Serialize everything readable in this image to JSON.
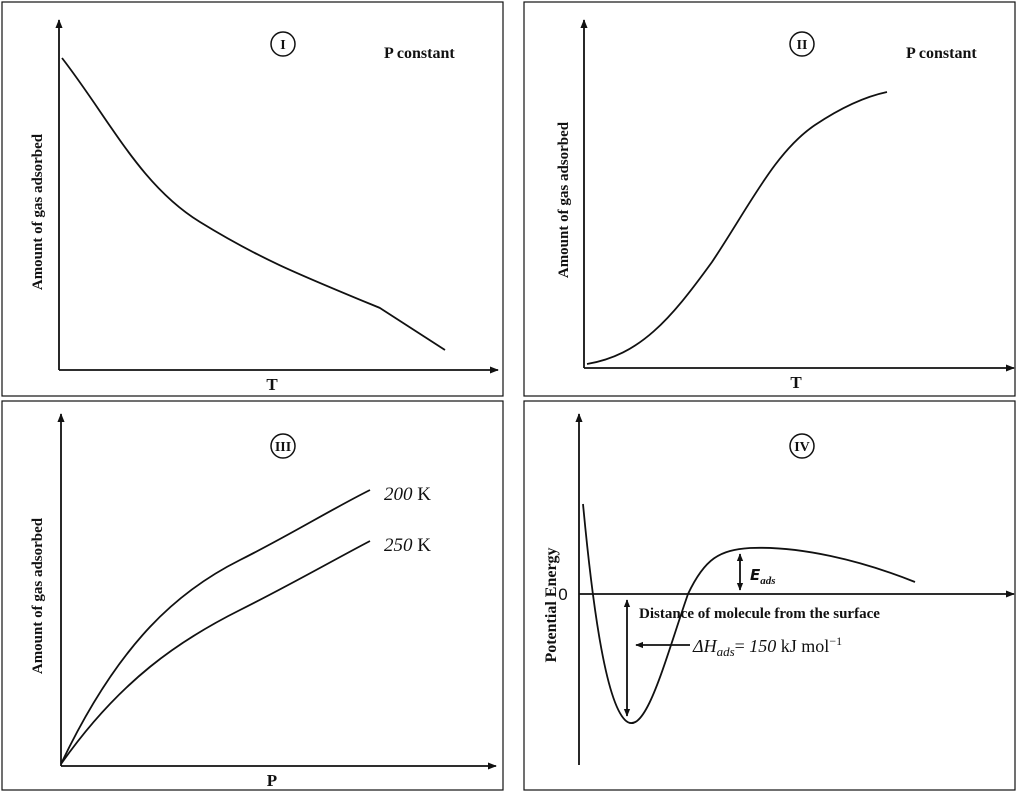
{
  "chart_data": [
    {
      "type": "line",
      "label": "I",
      "note": "P constant",
      "xlabel": "T",
      "ylabel": "Amount of gas adsorbed",
      "grid": false,
      "series": [
        {
          "trend": "decreasing",
          "x": [
            0,
            0.1,
            0.2,
            0.3,
            0.4,
            0.5,
            0.6,
            0.7,
            0.8,
            0.9,
            1.0
          ],
          "y": [
            1.0,
            0.8,
            0.62,
            0.5,
            0.42,
            0.35,
            0.28,
            0.22,
            0.16,
            0.1,
            0.05
          ]
        }
      ]
    },
    {
      "type": "line",
      "label": "II",
      "note": "P constant",
      "xlabel": "T",
      "ylabel": "Amount of gas adsorbed",
      "grid": false,
      "series": [
        {
          "trend": "increasing",
          "x": [
            0,
            0.1,
            0.2,
            0.3,
            0.4,
            0.5,
            0.6,
            0.7,
            0.8,
            0.9,
            1.0
          ],
          "y": [
            0.0,
            0.03,
            0.09,
            0.18,
            0.32,
            0.48,
            0.65,
            0.79,
            0.88,
            0.95,
            1.0
          ]
        }
      ]
    },
    {
      "type": "line",
      "label": "III",
      "xlabel": "P",
      "ylabel": "Amount of gas adsorbed",
      "grid": false,
      "series": [
        {
          "name": "200",
          "unit": "K",
          "x": [
            0,
            0.1,
            0.2,
            0.3,
            0.4,
            0.5,
            0.6,
            0.7,
            0.8,
            0.9,
            1.0
          ],
          "y": [
            0.0,
            0.3,
            0.46,
            0.57,
            0.66,
            0.73,
            0.79,
            0.85,
            0.9,
            0.95,
            1.0
          ]
        },
        {
          "name": "250",
          "unit": "K",
          "x": [
            0,
            0.1,
            0.2,
            0.3,
            0.4,
            0.5,
            0.6,
            0.7,
            0.8,
            0.9,
            1.0
          ],
          "y": [
            0.0,
            0.21,
            0.33,
            0.42,
            0.5,
            0.56,
            0.62,
            0.68,
            0.73,
            0.78,
            0.83
          ]
        }
      ]
    },
    {
      "type": "line",
      "label": "IV",
      "xlabel": "Distance of molecule from the surface",
      "ylabel": "Potential Energy",
      "y_zero_label": "0",
      "grid": false,
      "annotations": [
        {
          "symbol": "E",
          "subscript": "ads"
        },
        {
          "symbol": "ΔH",
          "subscript": "ads",
          "equals": "=",
          "value": "150",
          "unit": "kJ mol",
          "unit_exponent": "−1"
        }
      ],
      "series": [
        {
          "trend": "potential-well"
        }
      ]
    }
  ]
}
